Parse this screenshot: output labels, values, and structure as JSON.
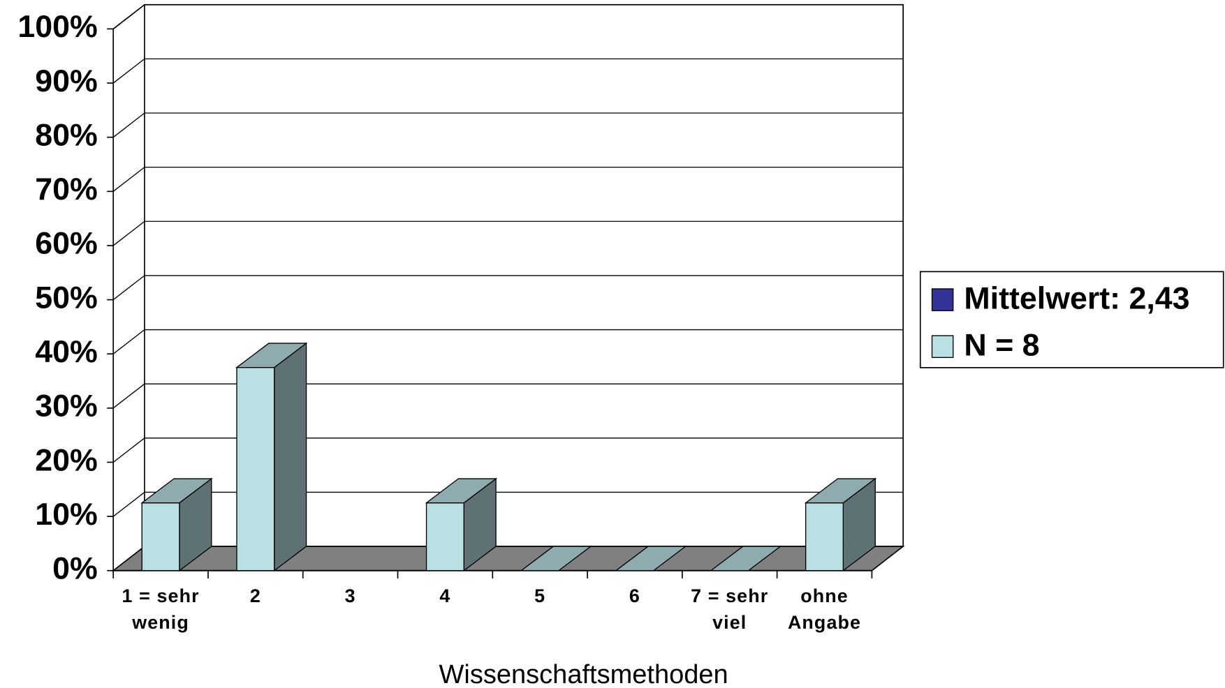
{
  "chart_data": {
    "type": "bar3d",
    "x_label": "Wissenschaftsmethoden",
    "categories": [
      "1 = sehr wenig",
      "2",
      "3",
      "4",
      "5",
      "6",
      "7 = sehr viel",
      "ohne Angabe"
    ],
    "series": [
      {
        "name": "Mittelwert: 2,43",
        "color": "#333399",
        "values": [
          null,
          null,
          null,
          null,
          null,
          null,
          null,
          null
        ]
      },
      {
        "name": "N = 8",
        "color": "#b9e0e3",
        "values": [
          12.5,
          37.5,
          null,
          12.5,
          0,
          0,
          0,
          12.5
        ]
      }
    ],
    "ylim": [
      0,
      100
    ],
    "yticks": [
      {
        "value": 0,
        "label": "0%"
      },
      {
        "value": 10,
        "label": "10%"
      },
      {
        "value": 20,
        "label": "20%"
      },
      {
        "value": 30,
        "label": "30%"
      },
      {
        "value": 40,
        "label": "40%"
      },
      {
        "value": 50,
        "label": "50%"
      },
      {
        "value": 60,
        "label": "60%"
      },
      {
        "value": 70,
        "label": "70%"
      },
      {
        "value": 80,
        "label": "80%"
      },
      {
        "value": 90,
        "label": "90%"
      },
      {
        "value": 100,
        "label": "100%"
      }
    ],
    "grid": true
  }
}
